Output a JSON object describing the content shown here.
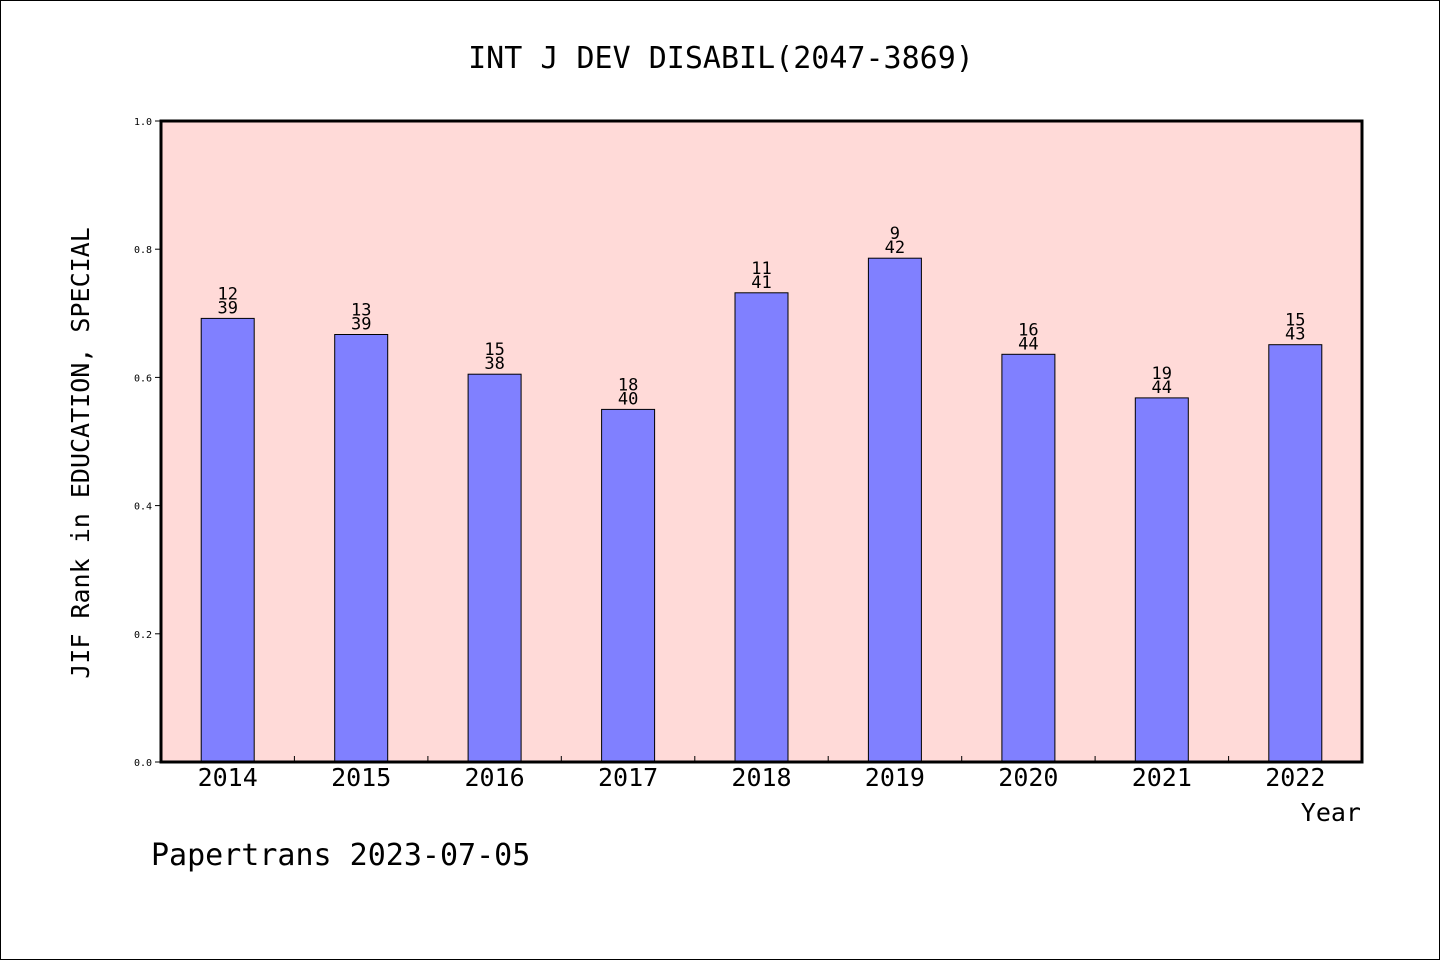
{
  "colors": {
    "plot_background": "#ffdad8",
    "bar_fill": "#8080ff",
    "bar_stroke": "#000000",
    "axis": "#000000",
    "text": "#000000"
  },
  "footer": {
    "credit": "Papertrans 2023-07-05"
  },
  "chart_data": {
    "type": "bar",
    "title": "INT J DEV DISABIL(2047-3869)",
    "xlabel": "Year",
    "ylabel": "JIF Rank in EDUCATION, SPECIAL",
    "ylim": [
      0,
      1.0
    ],
    "yticks": [
      "0.0",
      "0.2",
      "0.4",
      "0.6",
      "0.8",
      "1.0"
    ],
    "grid": false,
    "categories": [
      "2014",
      "2015",
      "2016",
      "2017",
      "2018",
      "2019",
      "2020",
      "2021",
      "2022"
    ],
    "values": [
      0.692,
      0.667,
      0.605,
      0.55,
      0.732,
      0.786,
      0.636,
      0.568,
      0.651
    ],
    "rank_labels": [
      {
        "rank": "12",
        "total": "39"
      },
      {
        "rank": "13",
        "total": "39"
      },
      {
        "rank": "15",
        "total": "38"
      },
      {
        "rank": "18",
        "total": "40"
      },
      {
        "rank": "11",
        "total": "41"
      },
      {
        "rank": "9",
        "total": "42"
      },
      {
        "rank": "16",
        "total": "44"
      },
      {
        "rank": "19",
        "total": "44"
      },
      {
        "rank": "15",
        "total": "43"
      }
    ]
  }
}
